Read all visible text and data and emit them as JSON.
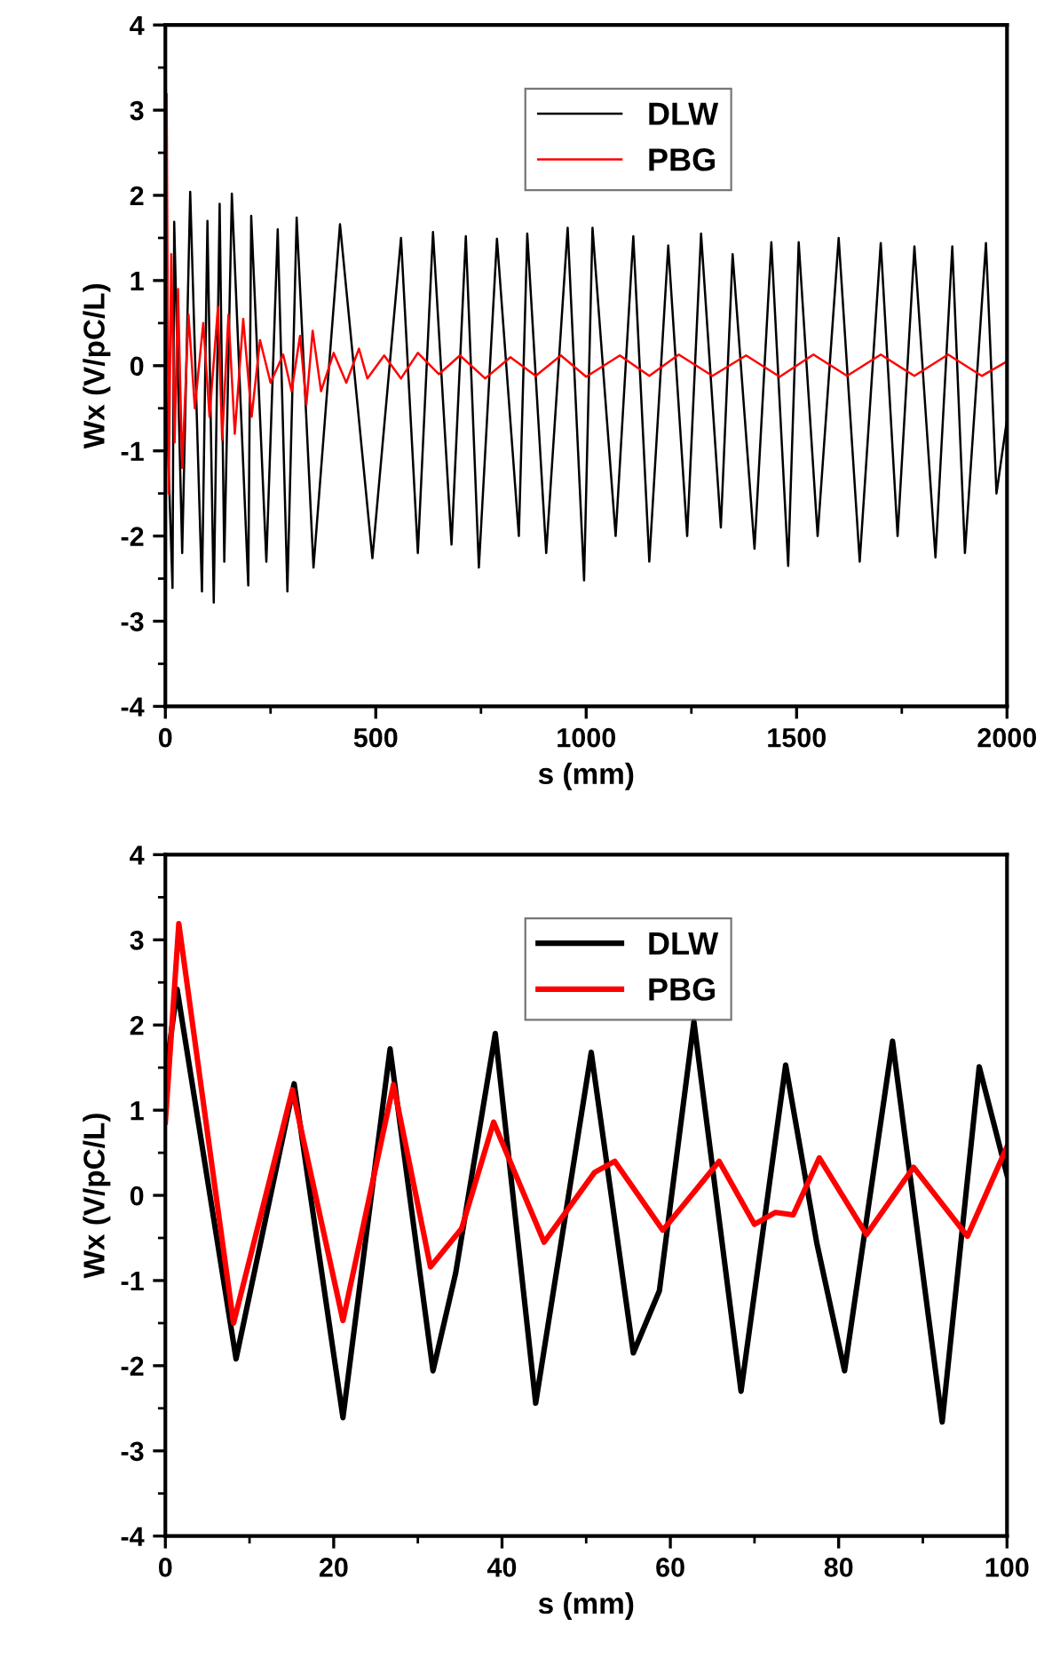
{
  "chart_data": [
    {
      "type": "line",
      "xlabel": "s (mm)",
      "ylabel": "Wx (V/pC/L)",
      "xlim": [
        0,
        2000
      ],
      "ylim": [
        -4,
        4
      ],
      "xticks": [
        0,
        500,
        1000,
        1500,
        2000
      ],
      "yticks": [
        -4,
        -3,
        -2,
        -1,
        0,
        1,
        2,
        3,
        4
      ],
      "grid": false,
      "legend": "top",
      "marker": "none",
      "line_style": "solid",
      "series": [
        {
          "name": "DLW",
          "color": "#000000",
          "x": [
            0,
            17,
            21,
            40,
            59,
            87,
            100,
            115,
            129,
            140,
            158,
            197,
            204,
            240,
            267,
            290,
            312,
            352,
            415,
            492,
            560,
            600,
            636,
            680,
            714,
            745,
            788,
            840,
            860,
            905,
            956,
            995,
            1015,
            1070,
            1112,
            1150,
            1195,
            1240,
            1273,
            1320,
            1348,
            1400,
            1440,
            1480,
            1505,
            1550,
            1600,
            1650,
            1700,
            1740,
            1780,
            1830,
            1870,
            1900,
            1950,
            1975,
            2000
          ],
          "values": [
            0,
            -2.61,
            1.69,
            -2.2,
            2.04,
            -2.65,
            1.7,
            -2.78,
            1.9,
            -2.3,
            2.02,
            -2.58,
            1.76,
            -2.3,
            1.6,
            -2.65,
            1.74,
            -2.37,
            1.66,
            -2.26,
            1.5,
            -2.2,
            1.57,
            -2.1,
            1.52,
            -2.37,
            1.49,
            -2.0,
            1.55,
            -2.2,
            1.62,
            -2.52,
            1.62,
            -2.0,
            1.52,
            -2.3,
            1.41,
            -2.0,
            1.55,
            -1.9,
            1.31,
            -2.15,
            1.45,
            -2.35,
            1.45,
            -2.0,
            1.5,
            -2.3,
            1.44,
            -2.0,
            1.4,
            -2.25,
            1.4,
            -2.2,
            1.44,
            -1.5,
            -0.63
          ]
        },
        {
          "name": "PBG",
          "color": "#ff0000",
          "x": [
            0,
            3,
            8,
            14,
            22,
            30,
            40,
            55,
            70,
            90,
            105,
            125,
            135,
            150,
            165,
            185,
            205,
            225,
            250,
            280,
            300,
            320,
            335,
            350,
            370,
            400,
            430,
            460,
            480,
            520,
            560,
            600,
            650,
            700,
            760,
            820,
            880,
            940,
            1000,
            1080,
            1150,
            1220,
            1300,
            1380,
            1460,
            1540,
            1620,
            1700,
            1780,
            1860,
            1940,
            2000
          ],
          "values": [
            0.5,
            3.19,
            -1.5,
            1.31,
            -0.9,
            0.9,
            -1.2,
            0.6,
            -0.5,
            0.5,
            -0.6,
            0.69,
            -0.87,
            0.6,
            -0.8,
            0.55,
            -0.6,
            0.3,
            -0.2,
            0.13,
            -0.3,
            0.35,
            -0.46,
            0.41,
            -0.3,
            0.15,
            -0.2,
            0.2,
            -0.15,
            0.12,
            -0.15,
            0.15,
            -0.1,
            0.12,
            -0.15,
            0.1,
            -0.12,
            0.12,
            -0.13,
            0.12,
            -0.12,
            0.13,
            -0.12,
            0.12,
            -0.13,
            0.13,
            -0.12,
            0.13,
            -0.12,
            0.13,
            -0.12,
            0.05
          ]
        }
      ]
    },
    {
      "type": "line",
      "xlabel": "s (mm)",
      "ylabel": "Wx (V/pC/L)",
      "xlim": [
        0,
        100
      ],
      "ylim": [
        -4,
        4
      ],
      "xticks": [
        0,
        20,
        40,
        60,
        80,
        100
      ],
      "yticks": [
        -4,
        -3,
        -2,
        -1,
        0,
        1,
        2,
        3,
        4
      ],
      "grid": false,
      "legend": "top",
      "marker": "none",
      "line_style": "solid",
      "series": [
        {
          "name": "DLW",
          "color": "#000000",
          "x": [
            0,
            1.4,
            8.4,
            15.3,
            21.1,
            26.7,
            31.8,
            34.5,
            39.2,
            44,
            50.6,
            55.6,
            58.7,
            62.8,
            68.4,
            73.7,
            77.4,
            80.7,
            86.4,
            92.3,
            96.7,
            100
          ],
          "values": [
            1.4,
            2.42,
            -1.92,
            1.31,
            -2.61,
            1.72,
            -2.06,
            -0.91,
            1.9,
            -2.44,
            1.68,
            -1.85,
            -1.12,
            2.04,
            -2.3,
            1.53,
            -0.56,
            -2.06,
            1.81,
            -2.66,
            1.51,
            0.24
          ]
        },
        {
          "name": "PBG",
          "color": "#ff0000",
          "x": [
            0,
            1.6,
            8.1,
            15.1,
            21.1,
            27.1,
            31.5,
            35.2,
            39,
            45,
            51,
            53.4,
            59.1,
            63,
            65.8,
            70,
            72.5,
            74.6,
            77.7,
            83.3,
            88.9,
            95.3,
            100
          ],
          "values": [
            0.86,
            3.19,
            -1.5,
            1.24,
            -1.47,
            1.3,
            -0.84,
            -0.39,
            0.86,
            -0.55,
            0.27,
            0.4,
            -0.41,
            0.06,
            0.4,
            -0.34,
            -0.2,
            -0.23,
            0.44,
            -0.46,
            0.33,
            -0.48,
            0.57
          ]
        }
      ]
    }
  ]
}
